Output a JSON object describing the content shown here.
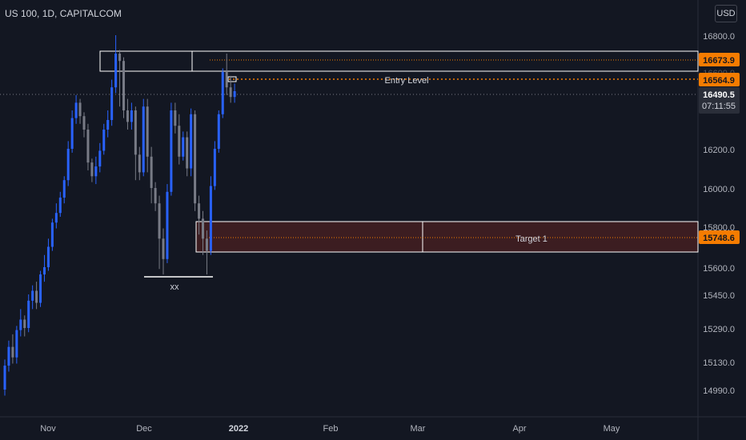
{
  "toolbar": {
    "symbol_title": "US 100, 1D, CAPITALCOM",
    "currency": "USD"
  },
  "colors": {
    "background": "#131722",
    "up_candle": "#2962ff",
    "down_candle": "#787b86",
    "axis_text": "#b2b5be",
    "level_orange": "#f57c00",
    "price_label": "#2a2e39",
    "zone_fill": "#3c1d21"
  },
  "chart_data": {
    "type": "candlestick",
    "symbol": "US 100",
    "interval": "1D",
    "source": "CAPITALCOM",
    "y_axis_ticks": [
      "16800.0",
      "16600.0",
      "16200.0",
      "16000.0",
      "15800.0",
      "15600.0",
      "15450.0",
      "15290.0",
      "15130.0",
      "14990.0"
    ],
    "x_axis_ticks": [
      "Nov",
      "Dec",
      "2022",
      "Feb",
      "Mar",
      "Apr",
      "May"
    ],
    "price_labels": [
      {
        "name": "upper-level",
        "value": "16673.9",
        "style": "orange"
      },
      {
        "name": "entry-level",
        "value": "16564.9",
        "style": "orange"
      },
      {
        "name": "current-price",
        "value": "16490.5",
        "style": "dark"
      },
      {
        "name": "countdown",
        "value": "07:11:55",
        "style": "dark"
      },
      {
        "name": "target-level",
        "value": "15748.6",
        "style": "orange"
      }
    ],
    "annotations": {
      "entry": "Entry Level",
      "target": "Target 1",
      "support_label": "xx"
    },
    "candles": [
      [
        14990,
        15110,
        14960,
        15140
      ],
      [
        15110,
        15200,
        15080,
        15230
      ],
      [
        15200,
        15150,
        15120,
        15260
      ],
      [
        15150,
        15280,
        15120,
        15300
      ],
      [
        15280,
        15330,
        15250,
        15380
      ],
      [
        15330,
        15290,
        15250,
        15350
      ],
      [
        15290,
        15420,
        15270,
        15450
      ],
      [
        15420,
        15470,
        15380,
        15500
      ],
      [
        15470,
        15410,
        15380,
        15520
      ],
      [
        15410,
        15560,
        15390,
        15580
      ],
      [
        15560,
        15600,
        15520,
        15660
      ],
      [
        15600,
        15700,
        15580,
        15740
      ],
      [
        15700,
        15820,
        15680,
        15840
      ],
      [
        15820,
        15870,
        15790,
        15920
      ],
      [
        15870,
        15950,
        15850,
        15980
      ],
      [
        15950,
        16040,
        15920,
        16060
      ],
      [
        16040,
        16200,
        16010,
        16240
      ],
      [
        16200,
        16360,
        16180,
        16400
      ],
      [
        16360,
        16440,
        16330,
        16480
      ],
      [
        16440,
        16370,
        16330,
        16460
      ],
      [
        16370,
        16300,
        16260,
        16390
      ],
      [
        16300,
        16130,
        16090,
        16330
      ],
      [
        16130,
        16060,
        16030,
        16150
      ],
      [
        16060,
        16110,
        16020,
        16160
      ],
      [
        16110,
        16190,
        16080,
        16230
      ],
      [
        16190,
        16300,
        16170,
        16330
      ],
      [
        16300,
        16350,
        16260,
        16400
      ],
      [
        16350,
        16520,
        16320,
        16560
      ],
      [
        16520,
        16700,
        16490,
        16800
      ],
      [
        16700,
        16660,
        16420,
        16720
      ],
      [
        16660,
        16400,
        16360,
        16680
      ],
      [
        16400,
        16340,
        16300,
        16460
      ],
      [
        16340,
        16400,
        16300,
        16440
      ],
      [
        16400,
        16170,
        16040,
        16420
      ],
      [
        16170,
        16080,
        16040,
        16210
      ],
      [
        16080,
        16420,
        16060,
        16460
      ],
      [
        16420,
        16160,
        16080,
        16460
      ],
      [
        16160,
        16000,
        15920,
        16210
      ],
      [
        16000,
        15920,
        15880,
        16030
      ],
      [
        15920,
        15740,
        15590,
        15960
      ],
      [
        15740,
        15640,
        15560,
        15790
      ],
      [
        15640,
        15980,
        15620,
        16020
      ],
      [
        15980,
        16400,
        15960,
        16440
      ],
      [
        16400,
        16320,
        16280,
        16440
      ],
      [
        16320,
        16160,
        16120,
        16380
      ],
      [
        16160,
        16260,
        16140,
        16290
      ],
      [
        16260,
        16100,
        16060,
        16290
      ],
      [
        16100,
        16380,
        16060,
        16410
      ],
      [
        16380,
        15920,
        15880,
        16400
      ],
      [
        15920,
        15840,
        15760,
        15960
      ],
      [
        15840,
        15740,
        15660,
        15880
      ],
      [
        15740,
        15680,
        15560,
        15780
      ],
      [
        15680,
        16010,
        15660,
        16060
      ],
      [
        16010,
        16200,
        15990,
        16240
      ],
      [
        16200,
        16380,
        16180,
        16400
      ],
      [
        16380,
        16600,
        16360,
        16620
      ],
      [
        16600,
        16520,
        16480,
        16700
      ],
      [
        16520,
        16470,
        16440,
        16580
      ],
      [
        16470,
        16500,
        16440,
        16540
      ]
    ]
  }
}
